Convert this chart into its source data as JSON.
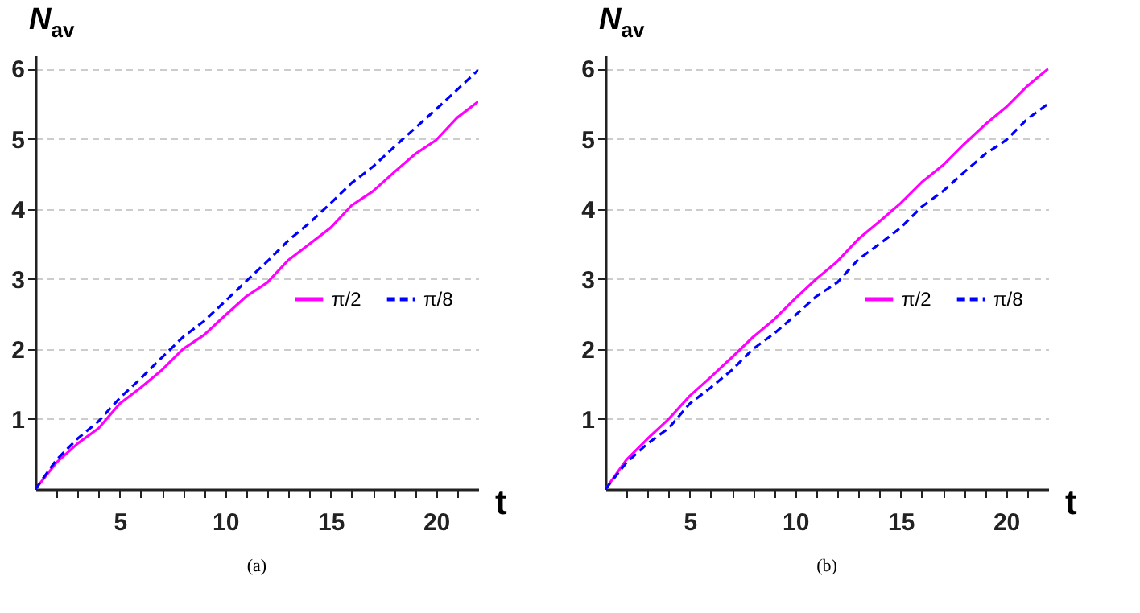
{
  "chart_data": [
    {
      "type": "line",
      "xlabel": "t",
      "ylabel": "N$_{av}$",
      "annotations": [
        "(a)"
      ],
      "x": [
        1,
        2,
        3,
        4,
        5,
        6,
        7,
        8,
        9,
        10,
        11,
        12,
        13,
        14,
        15,
        16,
        17,
        18,
        19,
        20,
        21,
        22
      ],
      "xlim": [
        1,
        22
      ],
      "ylim": [
        0,
        6.2
      ],
      "xticks": [
        {
          "value": 2,
          "label": null
        },
        {
          "value": 3,
          "label": null
        },
        {
          "value": 4,
          "label": null
        },
        5,
        {
          "value": 6,
          "label": null
        },
        {
          "value": 7,
          "label": null
        },
        {
          "value": 8,
          "label": null
        },
        {
          "value": 9,
          "label": null
        },
        10,
        {
          "value": 11,
          "label": null
        },
        {
          "value": 12,
          "label": null
        },
        {
          "value": 13,
          "label": null
        },
        {
          "value": 14,
          "label": null
        },
        15,
        {
          "value": 16,
          "label": null
        },
        {
          "value": 17,
          "label": null
        },
        {
          "value": 18,
          "label": null
        },
        {
          "value": 19,
          "label": null
        },
        20,
        {
          "value": 21,
          "label": null
        }
      ],
      "yticks": [
        1,
        2,
        3,
        4,
        5,
        6
      ],
      "grid": "y",
      "legend": "right",
      "series": [
        {
          "name": "π/2",
          "color": "#ff00ff",
          "line_style": "solid",
          "values": [
            0,
            0.38,
            0.65,
            0.87,
            1.22,
            1.45,
            1.7,
            2.0,
            2.2,
            2.48,
            2.75,
            2.95,
            3.27,
            3.5,
            3.73,
            4.05,
            4.25,
            4.52,
            4.78,
            4.98,
            5.3,
            5.53
          ]
        },
        {
          "name": "π/8",
          "color": "#0000ff",
          "line_style": "dashed",
          "values": [
            0,
            0.42,
            0.72,
            0.97,
            1.3,
            1.58,
            1.88,
            2.17,
            2.4,
            2.68,
            2.97,
            3.25,
            3.55,
            3.8,
            4.08,
            4.37,
            4.6,
            4.88,
            5.15,
            5.42,
            5.7,
            5.98
          ]
        }
      ]
    },
    {
      "type": "line",
      "xlabel": "t",
      "ylabel": "N$_{av}$",
      "annotations": [
        "(b)"
      ],
      "x": [
        1,
        2,
        3,
        4,
        5,
        6,
        7,
        8,
        9,
        10,
        11,
        12,
        13,
        14,
        15,
        16,
        17,
        18,
        19,
        20,
        21,
        22
      ],
      "xlim": [
        1,
        22
      ],
      "ylim": [
        0,
        6.2
      ],
      "xticks": [
        {
          "value": 2,
          "label": null
        },
        {
          "value": 3,
          "label": null
        },
        {
          "value": 4,
          "label": null
        },
        5,
        {
          "value": 6,
          "label": null
        },
        {
          "value": 7,
          "label": null
        },
        {
          "value": 8,
          "label": null
        },
        {
          "value": 9,
          "label": null
        },
        10,
        {
          "value": 11,
          "label": null
        },
        {
          "value": 12,
          "label": null
        },
        {
          "value": 13,
          "label": null
        },
        {
          "value": 14,
          "label": null
        },
        15,
        {
          "value": 16,
          "label": null
        },
        {
          "value": 17,
          "label": null
        },
        {
          "value": 18,
          "label": null
        },
        {
          "value": 19,
          "label": null
        },
        20,
        {
          "value": 21,
          "label": null
        }
      ],
      "yticks": [
        1,
        2,
        3,
        4,
        5,
        6
      ],
      "grid": "y",
      "legend": "right",
      "series": [
        {
          "name": "π/2",
          "color": "#ff00ff",
          "line_style": "solid",
          "values": [
            0,
            0.42,
            0.72,
            1.0,
            1.33,
            1.6,
            1.88,
            2.17,
            2.42,
            2.72,
            3.0,
            3.25,
            3.57,
            3.82,
            4.08,
            4.38,
            4.62,
            4.92,
            5.2,
            5.45,
            5.75,
            6.0
          ]
        },
        {
          "name": "π/8",
          "color": "#0000ff",
          "line_style": "dashed",
          "values": [
            0,
            0.38,
            0.65,
            0.87,
            1.22,
            1.45,
            1.7,
            2.0,
            2.22,
            2.48,
            2.75,
            2.95,
            3.28,
            3.5,
            3.73,
            4.03,
            4.25,
            4.52,
            4.78,
            4.98,
            5.28,
            5.5
          ]
        }
      ]
    }
  ]
}
